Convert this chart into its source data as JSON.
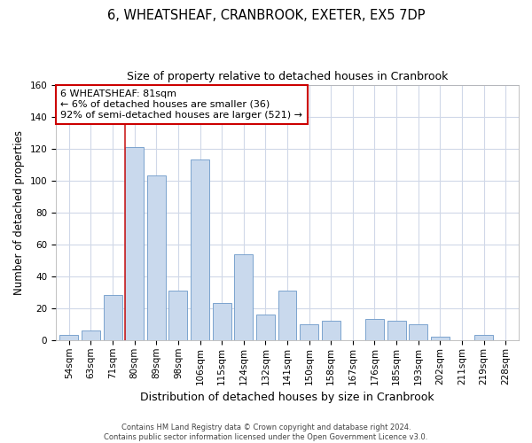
{
  "title": "6, WHEATSHEAF, CRANBROOK, EXETER, EX5 7DP",
  "subtitle": "Size of property relative to detached houses in Cranbrook",
  "xlabel": "Distribution of detached houses by size in Cranbrook",
  "ylabel": "Number of detached properties",
  "categories": [
    "54sqm",
    "63sqm",
    "71sqm",
    "80sqm",
    "89sqm",
    "98sqm",
    "106sqm",
    "115sqm",
    "124sqm",
    "132sqm",
    "141sqm",
    "150sqm",
    "158sqm",
    "167sqm",
    "176sqm",
    "185sqm",
    "193sqm",
    "202sqm",
    "211sqm",
    "219sqm",
    "228sqm"
  ],
  "values": [
    3,
    6,
    28,
    121,
    103,
    31,
    113,
    23,
    54,
    16,
    31,
    10,
    12,
    0,
    13,
    12,
    10,
    2,
    0,
    3,
    0
  ],
  "bar_color": "#c9d9ed",
  "bar_edge_color": "#7ba3ce",
  "ylim": [
    0,
    160
  ],
  "yticks": [
    0,
    20,
    40,
    60,
    80,
    100,
    120,
    140,
    160
  ],
  "annotation_title": "6 WHEATSHEAF: 81sqm",
  "annotation_line1": "← 6% of detached houses are smaller (36)",
  "annotation_line2": "92% of semi-detached houses are larger (521) →",
  "annotation_box_color": "#ffffff",
  "annotation_box_edge": "#cc0000",
  "footer1": "Contains HM Land Registry data © Crown copyright and database right 2024.",
  "footer2": "Contains public sector information licensed under the Open Government Licence v3.0.",
  "background_color": "#ffffff",
  "grid_color": "#d0d8e8",
  "title_fontsize": 10.5,
  "subtitle_fontsize": 9,
  "xlabel_fontsize": 9,
  "ylabel_fontsize": 8.5,
  "tick_fontsize": 7.5,
  "annotation_fontsize": 8,
  "footer_fontsize": 6,
  "property_bar_index": 3,
  "red_line_color": "#cc2222"
}
